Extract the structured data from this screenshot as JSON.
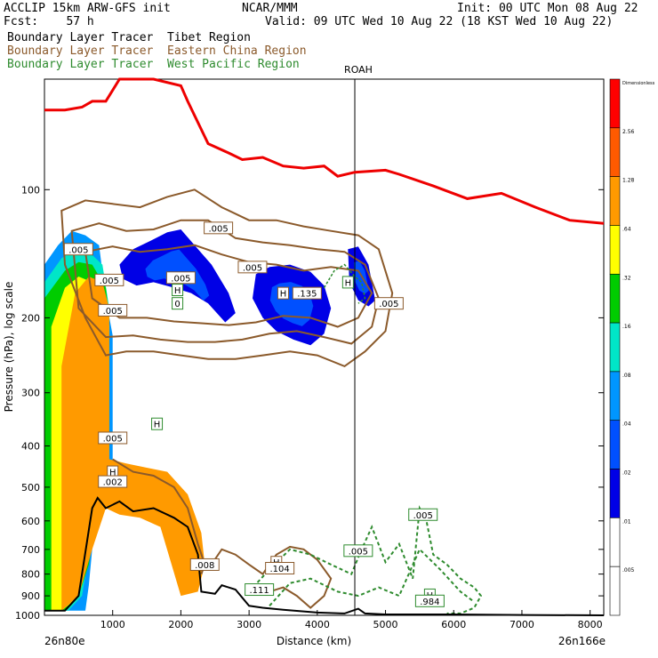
{
  "header": {
    "model": "ACCLIP 15km ARW-GFS init",
    "fcst": "Fcst:    57 h",
    "org": "NCAR/MMM",
    "init": "Init: 00 UTC Mon 08 Aug 22",
    "valid": "Valid: 09 UTC Wed 10 Aug 22 (18 KST Wed 10 Aug 22)",
    "tracers": [
      "Boundary Layer Tracer  Tibet Region",
      "Boundary Layer Tracer  Eastern China Region",
      "Boundary Layer Tracer  West Pacific Region"
    ],
    "colors": {
      "tibet": "#000000",
      "china": "#8b5a2b",
      "wp": "#2e8b2e"
    }
  },
  "chart_data": {
    "type": "cross-section",
    "xlabel": "Distance (km)",
    "ylabel": "Pressure (hPa), log scale",
    "xlim": [
      0,
      8200
    ],
    "ylim": [
      1000,
      55
    ],
    "x_ticks": [
      "1000",
      "2000",
      "3000",
      "4000",
      "5000",
      "6000",
      "7000",
      "8000"
    ],
    "y_ticks": [
      "100",
      "200",
      "300",
      "400",
      "500",
      "600",
      "700",
      "800",
      "900",
      "1000"
    ],
    "endpoints": {
      "left": "26n80e",
      "right": "26n166e"
    },
    "station": {
      "name": "ROAH",
      "x_km": 4550
    },
    "colorbar": {
      "labels": [
        "Dimensionless",
        "2.56",
        "1.28",
        ".64",
        ".32",
        ".16",
        ".08",
        ".04",
        ".02",
        ".01",
        ".005"
      ],
      "colors": [
        "#ff0000",
        "#ff5a00",
        "#ff9a00",
        "#ffff00",
        "#00cc00",
        "#00e6c8",
        "#0096ff",
        "#0050ff",
        "#0000e6",
        "#ffffff",
        "#ffffff"
      ]
    },
    "tropopause_line": {
      "color": "#ee0000",
      "x": [
        0,
        300,
        550,
        700,
        900,
        1100,
        1600,
        2000,
        2100,
        2400,
        2700,
        2900,
        3200,
        3500,
        3800,
        4100,
        4300,
        4550,
        5000,
        5200,
        5700,
        6200,
        6700,
        7200,
        7700,
        8200
      ],
      "p": [
        65,
        65,
        64,
        62,
        62,
        55,
        55,
        57,
        62,
        78,
        82,
        85,
        84,
        88,
        89,
        88,
        93,
        91,
        90,
        92,
        98,
        105,
        102,
        110,
        118,
        120
      ]
    },
    "terrain_line": {
      "color": "#000000",
      "x": [
        0,
        300,
        500,
        700,
        780,
        900,
        1100,
        1300,
        1600,
        1900,
        2100,
        2250,
        2300,
        2500,
        2600,
        2800,
        3000,
        3200,
        3500,
        4000,
        4400,
        4600,
        4700,
        5000,
        6000,
        7000,
        8200
      ],
      "p": [
        975,
        975,
        900,
        560,
        530,
        560,
        540,
        570,
        560,
        590,
        620,
        720,
        880,
        890,
        850,
        870,
        950,
        960,
        970,
        985,
        990,
        965,
        990,
        995,
        995,
        998,
        1000
      ]
    },
    "contour_labels": [
      {
        "text": ".005",
        "x": 2550,
        "p": 123,
        "series": "china"
      },
      {
        "text": ".005",
        "x": 3050,
        "p": 152,
        "series": "china"
      },
      {
        "text": ".005",
        "x": 5050,
        "p": 185,
        "series": "china"
      },
      {
        "text": ".005",
        "x": 500,
        "p": 138,
        "series": "china"
      },
      {
        "text": ".005",
        "x": 950,
        "p": 163,
        "series": "china"
      },
      {
        "text": ".005",
        "x": 1000,
        "p": 192,
        "series": "china"
      },
      {
        "text": ".005",
        "x": 2000,
        "p": 161,
        "series": "china"
      },
      {
        "text": ".135",
        "x": 3850,
        "p": 175,
        "series": "china"
      },
      {
        "text": ".005",
        "x": 1000,
        "p": 383,
        "series": "china"
      },
      {
        "text": "H",
        "x": 1000,
        "p": 460,
        "series": "china"
      },
      {
        "text": ".002",
        "x": 1000,
        "p": 485,
        "series": "china"
      },
      {
        "text": ".008",
        "x": 2350,
        "p": 760,
        "series": "china"
      },
      {
        "text": ".005",
        "x": 4600,
        "p": 705,
        "series": "wp"
      },
      {
        "text": ".005",
        "x": 5550,
        "p": 580,
        "series": "wp"
      },
      {
        "text": ".111",
        "x": 3150,
        "p": 870,
        "series": "wp"
      },
      {
        "text": "H",
        "x": 3400,
        "p": 750,
        "series": "china"
      },
      {
        "text": ".104",
        "x": 3450,
        "p": 775,
        "series": "china"
      },
      {
        "text": "H",
        "x": 5650,
        "p": 895,
        "series": "wp"
      },
      {
        "text": ".984",
        "x": 5650,
        "p": 925,
        "series": "wp"
      },
      {
        "text": "H",
        "x": 1650,
        "p": 355,
        "series": "wp"
      },
      {
        "text": "H",
        "x": 1950,
        "p": 172,
        "series": "wp"
      },
      {
        "text": "0",
        "x": 1950,
        "p": 185,
        "series": "wp"
      },
      {
        "text": "H",
        "x": 3500,
        "p": 175,
        "series": "china"
      },
      {
        "text": "H",
        "x": 4450,
        "p": 165,
        "series": "wp"
      }
    ]
  }
}
